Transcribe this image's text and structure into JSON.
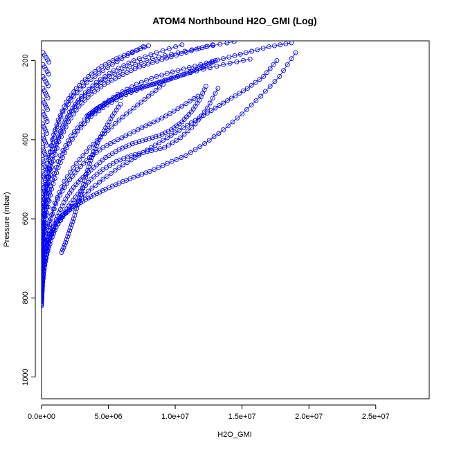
{
  "chart_data": {
    "type": "scatter",
    "title": "ATOM4 Northbound H2O_GMI (Log)",
    "xlabel": "H2O_GMI",
    "ylabel": "Pressure (mbar)",
    "xlim": [
      0,
      29000000
    ],
    "ylim": [
      1055,
      150
    ],
    "y_reversed": true,
    "x_ticks": [
      0,
      5000000,
      10000000,
      15000000,
      20000000,
      25000000
    ],
    "x_tick_labels": [
      "0.0e+00",
      "5.0e+06",
      "1.0e+07",
      "1.5e+07",
      "2.0e+07",
      "2.5e+07"
    ],
    "y_ticks": [
      200,
      400,
      600,
      800,
      1000
    ],
    "y_tick_labels": [
      "200",
      "400",
      "600",
      "800",
      "1000"
    ],
    "marker": "open-circle",
    "color": "#0000ff",
    "grid": false,
    "series": [
      {
        "x": [
          0,
          20000,
          60000,
          120000,
          250000,
          400000,
          600000,
          900000,
          1300000,
          1800000,
          2400000,
          3100000,
          3900000,
          4800000,
          5800000,
          6900000,
          8100000,
          9400000,
          10800000,
          12200000,
          13600000,
          15000000,
          16400000,
          17800000,
          19000000
        ],
        "y": [
          820,
          800,
          770,
          740,
          705,
          675,
          645,
          620,
          600,
          585,
          570,
          555,
          540,
          525,
          510,
          495,
          480,
          460,
          440,
          410,
          375,
          335,
          290,
          240,
          180
        ]
      },
      {
        "x": [
          0,
          30000,
          90000,
          200000,
          400000,
          700000,
          1100000,
          1600000,
          2200000,
          2900000,
          3700000,
          4600000,
          5600000,
          6700000,
          7900000,
          9200000,
          10400000,
          11500000,
          12400000,
          13200000
        ],
        "y": [
          815,
          790,
          760,
          725,
          690,
          655,
          620,
          590,
          560,
          530,
          500,
          475,
          455,
          440,
          430,
          420,
          395,
          360,
          320,
          270
        ]
      },
      {
        "x": [
          0,
          50000,
          150000,
          300000,
          550000,
          900000,
          1300000,
          1800000,
          2400000,
          3100000,
          3900000,
          4800000,
          5800000,
          6800000,
          7800000,
          8800000,
          9700000,
          10500000,
          11200000,
          11800000,
          12300000
        ],
        "y": [
          810,
          780,
          740,
          700,
          660,
          620,
          585,
          550,
          520,
          495,
          470,
          445,
          425,
          410,
          400,
          390,
          375,
          355,
          330,
          300,
          265
        ]
      },
      {
        "x": [
          100000,
          400000,
          900000,
          1600000,
          2500000,
          3500000,
          4600000,
          5800000,
          7000000,
          8200000,
          9400000,
          10600000,
          11800000,
          13000000,
          14200000,
          15400000,
          16600000,
          17600000
        ],
        "y": [
          700,
          665,
          630,
          595,
          560,
          530,
          500,
          470,
          445,
          420,
          395,
          370,
          345,
          320,
          295,
          270,
          240,
          200
        ]
      },
      {
        "x": [
          0,
          100000,
          300000,
          700000,
          1200000,
          1900000,
          2700000,
          3600000,
          4600000,
          5700000,
          6900000,
          8100000,
          9300000,
          10500000,
          11700000
        ],
        "y": [
          780,
          720,
          660,
          600,
          550,
          510,
          475,
          445,
          420,
          400,
          380,
          360,
          340,
          315,
          290
        ]
      },
      {
        "x": [
          0,
          200000,
          500000,
          1000000,
          1700000,
          2600000,
          3600000,
          4700000,
          5800000,
          6900000,
          8000000,
          9100000
        ],
        "y": [
          760,
          690,
          620,
          560,
          505,
          460,
          420,
          385,
          350,
          320,
          290,
          260
        ]
      },
      {
        "x": [
          1500000,
          1800000,
          2100000,
          2400000,
          2700000,
          3000000,
          3300000,
          3600000,
          3900000,
          4300000,
          4800000,
          5300000,
          5900000
        ],
        "y": [
          685,
          660,
          630,
          600,
          565,
          530,
          495,
          460,
          430,
          400,
          370,
          340,
          310
        ]
      },
      {
        "x": [
          0,
          150000,
          400000,
          800000,
          1400000,
          2200000,
          3200000,
          4400000,
          5700000,
          7100000,
          8600000,
          10200000,
          11900000,
          13600000,
          15300000,
          17000000,
          18700000
        ],
        "y": [
          740,
          650,
          570,
          500,
          440,
          390,
          350,
          315,
          285,
          260,
          240,
          225,
          210,
          195,
          180,
          165,
          155
        ]
      },
      {
        "x": [
          0,
          80000,
          250000,
          550000,
          1000000,
          1600000,
          2400000,
          3400000,
          4600000,
          6000000,
          7600000
        ],
        "y": [
          750,
          640,
          540,
          450,
          380,
          330,
          290,
          255,
          225,
          195,
          165
        ]
      },
      {
        "x": [
          0,
          120000,
          350000,
          750000,
          1300000,
          2000000,
          2800000,
          3700000,
          4700000,
          5800000,
          7000000,
          8300000,
          9700000,
          11200000,
          12800000
        ],
        "y": [
          735,
          630,
          545,
          470,
          405,
          355,
          315,
          285,
          260,
          240,
          220,
          205,
          190,
          175,
          160
        ]
      },
      {
        "x": [
          0,
          60000,
          200000,
          450000,
          850000,
          1400000,
          2100000,
          3000000,
          4100000,
          5400000,
          6900000,
          8600000,
          10500000
        ],
        "y": [
          790,
          680,
          590,
          510,
          440,
          380,
          330,
          290,
          255,
          225,
          200,
          180,
          160
        ]
      },
      {
        "x": [
          3400000,
          3800000,
          4200000,
          4700000,
          5200000,
          5700000,
          6200000,
          6800000,
          7400000,
          8100000,
          8800000,
          9500000,
          10200000,
          10900000,
          11600000,
          12300000,
          13000000
        ],
        "y": [
          340,
          330,
          320,
          310,
          300,
          290,
          282,
          275,
          268,
          262,
          255,
          248,
          240,
          232,
          222,
          212,
          200
        ]
      },
      {
        "x": [
          0,
          40000,
          120000,
          260000,
          480000,
          800000,
          1250000,
          1850000,
          2600000,
          3500000,
          4500000,
          5600000,
          6800000,
          8000000
        ],
        "y": [
          800,
          700,
          610,
          530,
          460,
          400,
          350,
          305,
          270,
          240,
          215,
          195,
          178,
          162
        ]
      },
      {
        "x": [
          0,
          100000,
          280000,
          600000,
          1100000,
          1800000,
          2700000,
          3800000,
          5100000,
          6600000,
          8300000,
          10200000,
          12300000,
          14400000
        ],
        "y": [
          760,
          650,
          555,
          475,
          405,
          350,
          305,
          270,
          240,
          215,
          195,
          180,
          165,
          152
        ]
      },
      {
        "x": [
          0,
          60000,
          180000,
          400000,
          750000,
          1250000,
          1900000,
          2700000,
          3700000,
          4900000,
          6300000,
          7900000,
          9700000,
          11600000,
          13600000,
          15600000
        ],
        "y": [
          790,
          720,
          650,
          585,
          525,
          470,
          420,
          378,
          342,
          312,
          286,
          264,
          244,
          226,
          210,
          196
        ]
      }
    ]
  }
}
